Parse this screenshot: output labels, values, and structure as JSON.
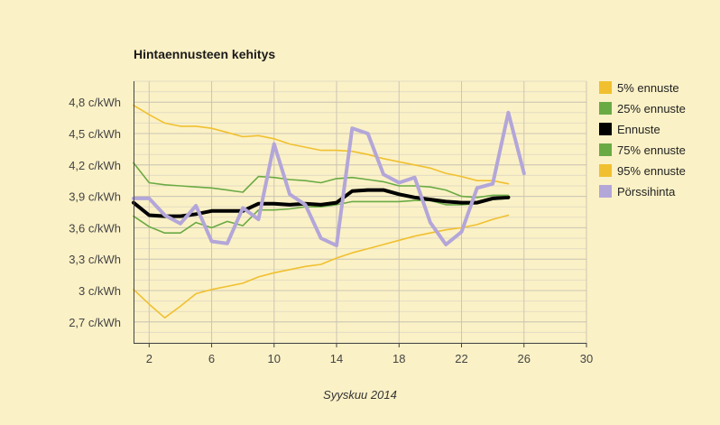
{
  "chart_data": {
    "type": "line",
    "title": "Hintaennusteen kehitys",
    "xlabel": "Syyskuu 2014",
    "ylabel": "",
    "xlim": [
      1,
      30
    ],
    "ylim": [
      2.5,
      5.0
    ],
    "x_ticks": [
      2,
      6,
      10,
      14,
      18,
      22,
      26,
      30
    ],
    "x_tick_labels": [
      "2",
      "6",
      "10",
      "14",
      "18",
      "22",
      "26",
      "30"
    ],
    "y_ticks": [
      2.7,
      3.0,
      3.3,
      3.6,
      3.9,
      4.2,
      4.5,
      4.8
    ],
    "y_tick_labels": [
      "2,7 c/kWh",
      "3 c/kWh",
      "3,3 c/kWh",
      "3,6 c/kWh",
      "3,9 c/kWh",
      "4,2 c/kWh",
      "4,5 c/kWh",
      "4,8 c/kWh"
    ],
    "grid": true,
    "legend_position": "right",
    "x": [
      1,
      2,
      3,
      4,
      5,
      6,
      7,
      8,
      9,
      10,
      11,
      12,
      13,
      14,
      15,
      16,
      17,
      18,
      19,
      20,
      21,
      22,
      23,
      24,
      25,
      26
    ],
    "series": [
      {
        "name": "5% ennuste",
        "color": "#f0c030",
        "width": 1.6,
        "values": [
          3.01,
          2.87,
          2.74,
          2.85,
          2.97,
          3.01,
          3.04,
          3.07,
          3.13,
          3.17,
          3.2,
          3.23,
          3.25,
          3.31,
          3.36,
          3.4,
          3.44,
          3.48,
          3.52,
          3.55,
          3.58,
          3.6,
          3.63,
          3.68,
          3.72,
          null
        ]
      },
      {
        "name": "25% ennuste",
        "color": "#6aaa45",
        "width": 1.6,
        "values": [
          3.71,
          3.61,
          3.55,
          3.55,
          3.65,
          3.6,
          3.66,
          3.62,
          3.77,
          3.77,
          3.78,
          3.8,
          3.8,
          3.82,
          3.85,
          3.85,
          3.85,
          3.85,
          3.86,
          3.86,
          3.82,
          3.82,
          3.83,
          3.87,
          3.88,
          null
        ]
      },
      {
        "name": "Ennuste",
        "color": "#000000",
        "width": 4,
        "values": [
          3.84,
          3.72,
          3.71,
          3.71,
          3.73,
          3.76,
          3.76,
          3.76,
          3.83,
          3.83,
          3.82,
          3.83,
          3.82,
          3.84,
          3.95,
          3.96,
          3.96,
          3.92,
          3.89,
          3.87,
          3.85,
          3.84,
          3.84,
          3.88,
          3.89,
          null
        ]
      },
      {
        "name": "75% ennuste",
        "color": "#6aaa45",
        "width": 1.6,
        "values": [
          4.22,
          4.03,
          4.01,
          4.0,
          3.99,
          3.98,
          3.96,
          3.94,
          4.09,
          4.08,
          4.06,
          4.05,
          4.03,
          4.07,
          4.08,
          4.06,
          4.04,
          4.0,
          4.0,
          3.99,
          3.96,
          3.9,
          3.89,
          3.91,
          3.91,
          null
        ]
      },
      {
        "name": "95% ennuste",
        "color": "#f0c030",
        "width": 1.6,
        "values": [
          4.77,
          4.68,
          4.6,
          4.57,
          4.57,
          4.55,
          4.51,
          4.47,
          4.48,
          4.45,
          4.4,
          4.37,
          4.34,
          4.34,
          4.33,
          4.3,
          4.26,
          4.23,
          4.2,
          4.17,
          4.12,
          4.09,
          4.05,
          4.05,
          4.02,
          null
        ]
      },
      {
        "name": "Pörssihinta",
        "color": "#b3a6d9",
        "width": 4,
        "values": [
          3.88,
          3.88,
          3.72,
          3.64,
          3.81,
          3.47,
          3.45,
          3.79,
          3.68,
          4.4,
          3.92,
          3.82,
          3.5,
          3.43,
          4.55,
          4.5,
          4.11,
          4.03,
          4.08,
          3.65,
          3.44,
          3.56,
          3.98,
          4.02,
          4.7,
          4.12
        ]
      }
    ],
    "colors": {
      "background": "#fbf1c6",
      "grid": "#ccc6b4",
      "axis": "#444444"
    }
  }
}
